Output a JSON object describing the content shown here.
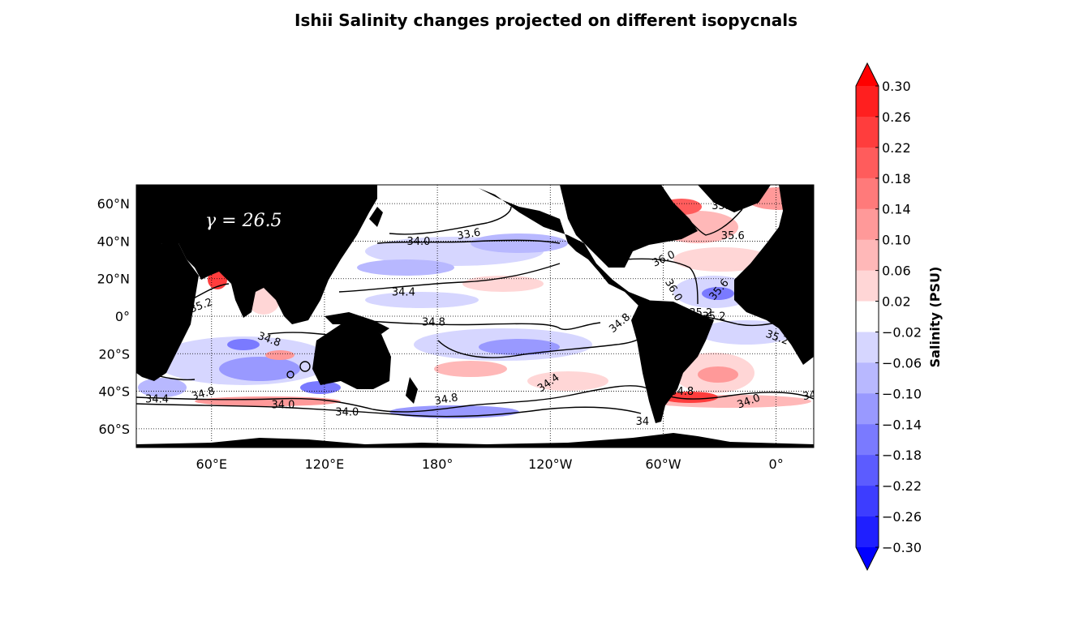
{
  "chart_data": {
    "type": "heatmap",
    "title": "Ishii Salinity changes projected on different isopycnals",
    "annotation": "γ = 26.5",
    "x_ticks": [
      "60°E",
      "120°E",
      "180°",
      "120°W",
      "60°W",
      "0°"
    ],
    "y_ticks": [
      "60°N",
      "40°N",
      "20°N",
      "0°",
      "20°S",
      "40°S",
      "60°S"
    ],
    "x_tick_lon": [
      60,
      120,
      180,
      240,
      300,
      360
    ],
    "y_tick_lat": [
      60,
      40,
      20,
      0,
      -20,
      -40,
      -60
    ],
    "lon_range": [
      20,
      380
    ],
    "lat_range": [
      -70,
      70
    ],
    "grid": true,
    "colorbar": {
      "label": "Salinity (PSU)",
      "levels": [
        "0.30",
        "0.26",
        "0.22",
        "0.18",
        "0.14",
        "0.10",
        "0.06",
        "0.02",
        "−0.02",
        "−0.06",
        "−0.10",
        "−0.14",
        "−0.18",
        "−0.22",
        "−0.26",
        "−0.30"
      ],
      "colors": [
        "#ff1f1f",
        "#ff3d3d",
        "#ff5c5c",
        "#ff7a7a",
        "#ff9999",
        "#ffb8b8",
        "#ffd6d6",
        "#ffffff",
        "#d6d6ff",
        "#b8b8ff",
        "#9999ff",
        "#7a7aff",
        "#5c5cff",
        "#3d3dff",
        "#1f1fff"
      ],
      "max_color": "#ff0000",
      "min_color": "#0000ff",
      "extend": "both"
    },
    "contour_labels": [
      {
        "text": "33.6",
        "lon": 197,
        "lat": 42,
        "rot": -10
      },
      {
        "text": "34.0",
        "lon": 170,
        "lat": 38,
        "rot": 0
      },
      {
        "text": "35.2",
        "lon": 332,
        "lat": 57,
        "rot": 0
      },
      {
        "text": "35.6",
        "lon": 337,
        "lat": 41,
        "rot": 0
      },
      {
        "text": "36.0",
        "lon": 301,
        "lat": 29,
        "rot": -25
      },
      {
        "text": "35.6",
        "lon": 331,
        "lat": 13,
        "rot": -50
      },
      {
        "text": "36.0",
        "lon": 304,
        "lat": 13,
        "rot": 60
      },
      {
        "text": "34.4",
        "lon": 162,
        "lat": 11,
        "rot": 0
      },
      {
        "text": "35.2",
        "lon": 55,
        "lat": 4,
        "rot": -20
      },
      {
        "text": "34.8",
        "lon": 178,
        "lat": -5,
        "rot": 0
      },
      {
        "text": "34.8",
        "lon": 278,
        "lat": -5,
        "rot": -40
      },
      {
        "text": "35.2",
        "lon": 320,
        "lat": 0,
        "rot": 0
      },
      {
        "text": "35.2",
        "lon": 364,
        "lat": 0,
        "rot": 0
      },
      {
        "text": "35.2",
        "lon": 360,
        "lat": -13,
        "rot": 20
      },
      {
        "text": "34.8",
        "lon": 90,
        "lat": -14,
        "rot": 20
      },
      {
        "text": "34.4",
        "lon": 240,
        "lat": -37,
        "rot": -35
      },
      {
        "text": "34.4",
        "lon": 31,
        "lat": -46,
        "rot": 0
      },
      {
        "text": "34.8",
        "lon": 56,
        "lat": -43,
        "rot": -15
      },
      {
        "text": "34.0",
        "lon": 98,
        "lat": -49,
        "rot": 0
      },
      {
        "text": "34.0",
        "lon": 132,
        "lat": -53,
        "rot": 0
      },
      {
        "text": "34.8",
        "lon": 185,
        "lat": -46,
        "rot": -10
      },
      {
        "text": "34.8",
        "lon": 310,
        "lat": -42,
        "rot": 0
      },
      {
        "text": "34.0",
        "lon": 346,
        "lat": -47,
        "rot": -20
      },
      {
        "text": "34",
        "lon": 378,
        "lat": -44,
        "rot": -10
      },
      {
        "text": "34",
        "lon": 289,
        "lat": -58,
        "rot": 0
      },
      {
        "text": "35.2",
        "lon": 327,
        "lat": -2,
        "rot": 0
      }
    ]
  }
}
